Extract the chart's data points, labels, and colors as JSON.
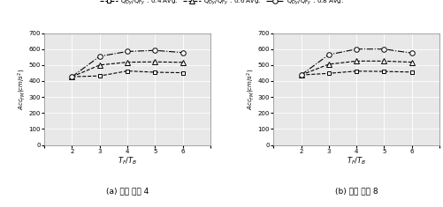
{
  "x": [
    2,
    3,
    4,
    5,
    6
  ],
  "panel_a": {
    "series_04": [
      427,
      432,
      463,
      455,
      452
    ],
    "series_06": [
      427,
      500,
      518,
      520,
      517
    ],
    "series_08": [
      427,
      555,
      585,
      592,
      578
    ]
  },
  "panel_b": {
    "series_04": [
      438,
      448,
      462,
      460,
      456
    ],
    "series_06": [
      438,
      505,
      525,
      525,
      518
    ],
    "series_08": [
      438,
      565,
      600,
      600,
      575
    ]
  },
  "xlabel": "$T_F/T_B$",
  "ylabel_a": "$Acc_{FM}(cm/s^2)$",
  "ylabel_b": "$Acc_{FM}(cm/s^2)$",
  "label_a": "(a) 변형 비율 4",
  "label_b": "(b) 변형 비율 8",
  "legend_labels": [
    "$Q_{Dy}/Q_{Fy}$ : 0.4 Avg.",
    "$Q_{Dy}/Q_{Fy}$ : 0.6 Avg.",
    "$Q_{Dy}/Q_{Fy}$ : 0.8 Avg."
  ],
  "ylim": [
    0,
    700
  ],
  "yticks": [
    0,
    100,
    200,
    300,
    400,
    500,
    600,
    700
  ],
  "xlim": [
    1,
    7
  ],
  "xticks": [
    1,
    2,
    3,
    4,
    5,
    6,
    7
  ],
  "bg_color": "#e8e8e8",
  "grid_color": "#ffffff"
}
